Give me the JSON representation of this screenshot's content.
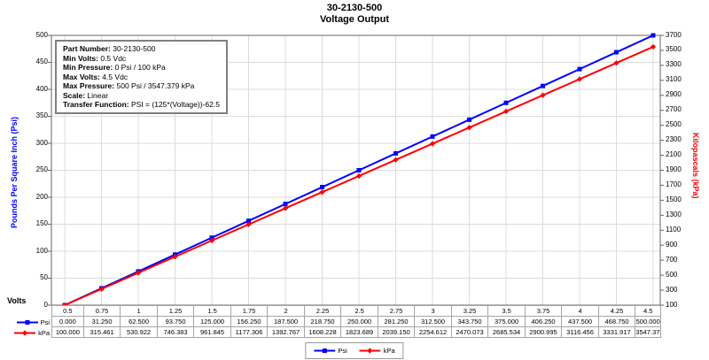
{
  "title": {
    "line1": "30-2130-500",
    "line2": "Voltage Output"
  },
  "info_box": {
    "lines": [
      {
        "label": "Part Number",
        "value": "30-2130-500"
      },
      {
        "label": "Min Volts",
        "value": "0.5 Vdc"
      },
      {
        "label": "Min Pressure",
        "value": "0 Psi / 100 kPa"
      },
      {
        "label": "Max Volts",
        "value": "4.5 Vdc"
      },
      {
        "label": "Max Pressure",
        "value": "500 Psi / 3547.379 kPa"
      },
      {
        "label": "Scale",
        "value": "Linear"
      },
      {
        "label": "Transfer Function",
        "value": "PSI = (125*(Voltage))-62.5"
      }
    ]
  },
  "axes": {
    "x_title": "Volts",
    "left_title": "Pounds Per Square Inch (Psi)",
    "right_title": "Kilopascals (kPa)",
    "left_color": "#0000ff",
    "right_color": "#ff0000"
  },
  "chart_data": {
    "type": "line",
    "title": "30-2130-500 Voltage Output",
    "xlabel": "Volts",
    "x": [
      0.5,
      0.75,
      1,
      1.25,
      1.5,
      1.75,
      2,
      2.25,
      2.5,
      2.75,
      3,
      3.25,
      3.5,
      3.75,
      4,
      4.25,
      4.5
    ],
    "x_labels": [
      "0.5",
      "0.75",
      "1",
      "1.25",
      "1.5",
      "1.75",
      "2",
      "2.25",
      "2.5",
      "2.75",
      "3",
      "3.25",
      "3.5",
      "3.75",
      "4",
      "4.25",
      "4.5"
    ],
    "left_axis": {
      "label": "Pounds Per Square Inch (Psi)",
      "min": 0,
      "max": 500,
      "tick_step": 50
    },
    "right_axis": {
      "label": "Kilopascals (kPa)",
      "min": 100,
      "max": 3700,
      "tick_step": 200
    },
    "grid": true,
    "legend_position": "bottom",
    "series": [
      {
        "name": "Psi",
        "color": "#0000ff",
        "marker": "square",
        "axis": "left",
        "values": [
          0,
          31.25,
          62.5,
          93.75,
          125,
          156.25,
          187.5,
          218.75,
          250,
          281.25,
          312.5,
          343.75,
          375,
          406.25,
          437.5,
          468.75,
          500
        ],
        "display": [
          "0.000",
          "31.250",
          "62.500",
          "93.750",
          "125.000",
          "156.250",
          "187.500",
          "218.750",
          "250.000",
          "281.250",
          "312.500",
          "343.750",
          "375.000",
          "406.250",
          "437.500",
          "468.750",
          "500.000"
        ]
      },
      {
        "name": "kPa",
        "color": "#ff0000",
        "marker": "diamond",
        "axis": "right",
        "values": [
          100,
          315.461,
          530.922,
          746.383,
          961.845,
          1177.306,
          1392.767,
          1608.228,
          1823.689,
          2039.15,
          2254.612,
          2470.073,
          2685.534,
          2900.995,
          3116.456,
          3331.917,
          3547.379
        ],
        "display": [
          "100.000",
          "315.461",
          "530.922",
          "746.383",
          "961.845",
          "1177.306",
          "1392.767",
          "1608.228",
          "1823.689",
          "2039.150",
          "2254.612",
          "2470.073",
          "2685.534",
          "2900.995",
          "3116.456",
          "3331.917",
          "3547.379"
        ]
      }
    ]
  },
  "legend": {
    "items": [
      {
        "label": "Psi",
        "color": "#0000ff",
        "marker": "square"
      },
      {
        "label": "kPa",
        "color": "#ff0000",
        "marker": "diamond"
      }
    ]
  },
  "colors": {
    "grid": "#dcdcdc",
    "plot_border": "#666666",
    "tick": "#666666",
    "table_border": "#a6a6a6",
    "info_border": "#7f7f7f",
    "legend_border": "#999999"
  }
}
